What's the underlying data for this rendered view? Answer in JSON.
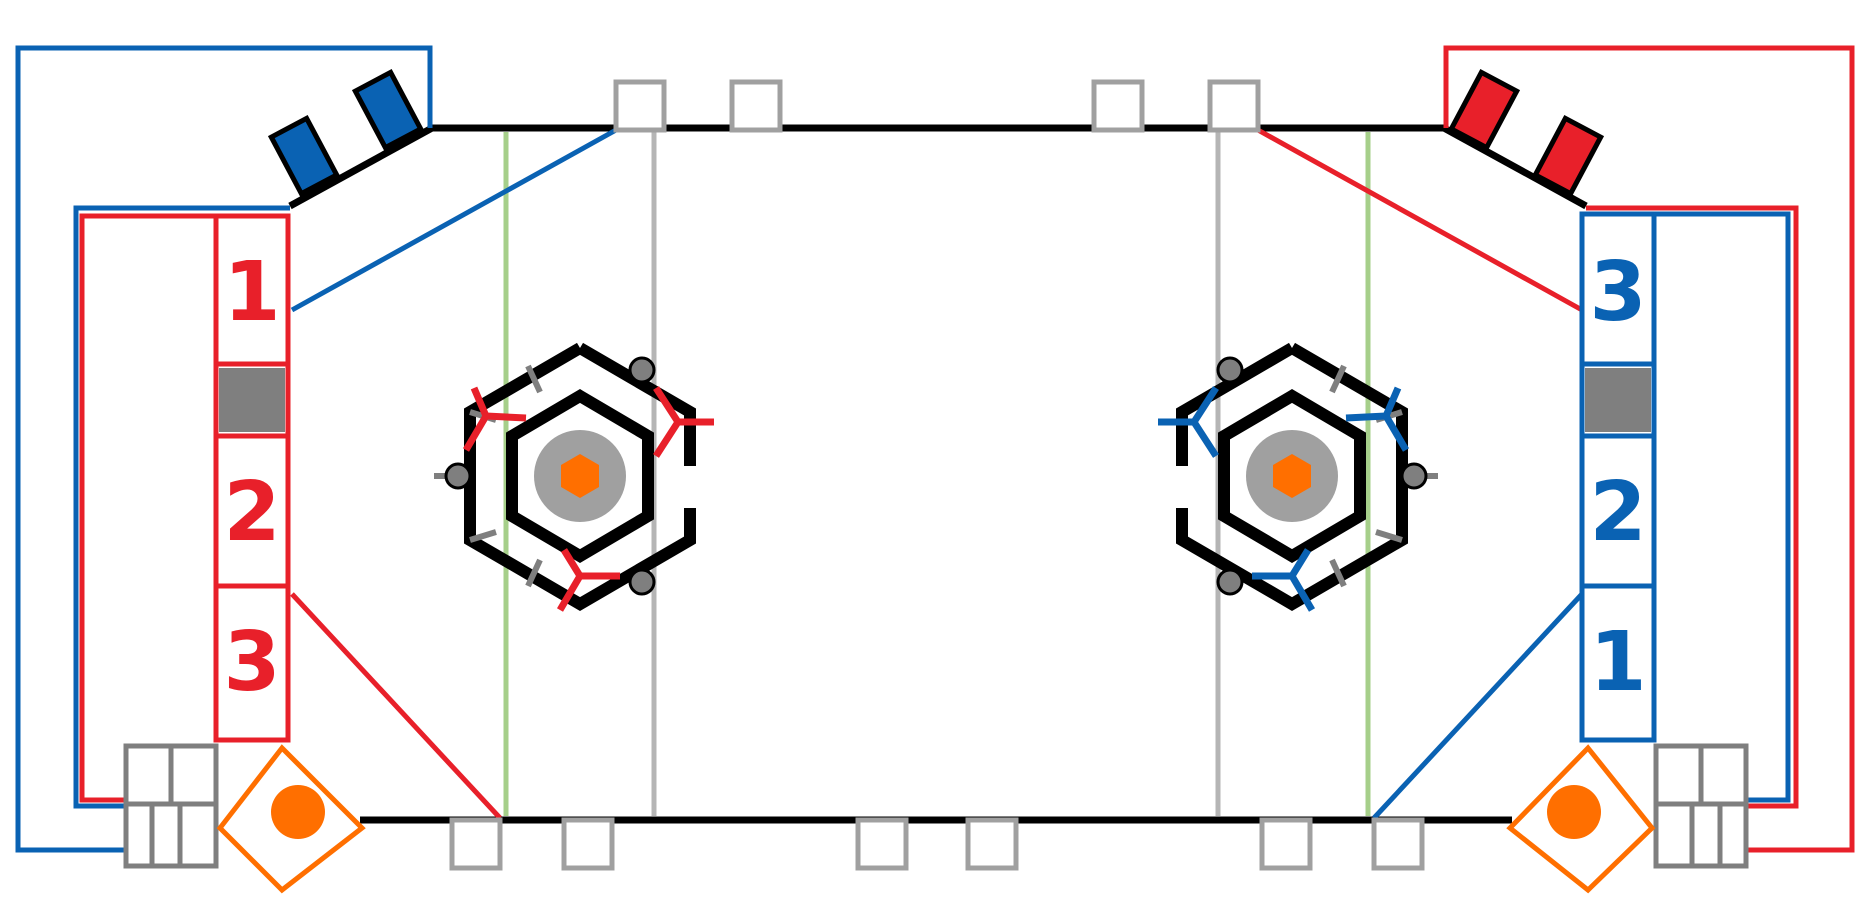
{
  "colors": {
    "red": "#E8202A",
    "blue": "#0A62B3",
    "black": "#000000",
    "gray_line": "#B5B5B5",
    "green_line": "#A6CF8A",
    "marker_gray": "#A0A0A0",
    "dark_gray": "#7F7F7F",
    "orange": "#FF6F00"
  },
  "red_alliance": {
    "stations": {
      "s1": "1",
      "s2": "2",
      "s3": "3"
    }
  },
  "blue_alliance": {
    "stations": {
      "s1": "1",
      "s2": "2",
      "s3": "3"
    }
  },
  "icons": {
    "hub": "hexagon-hub-icon",
    "loading_zone": "diamond-ball-icon",
    "cart": "grid-cart-icon"
  }
}
